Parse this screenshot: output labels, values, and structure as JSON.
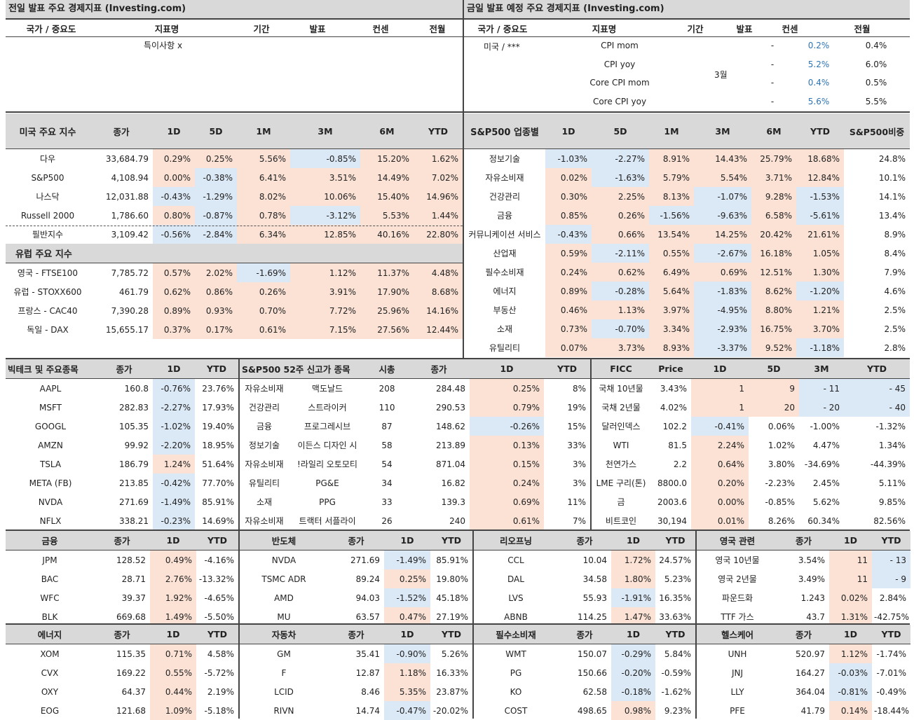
{
  "header_left": "전일 발표 주요 경제지표 (Investing.com)",
  "header_right": "금일 발표 예정 주요 경제지표 (Investing.com)",
  "econ_cols": [
    "국가 / 중요도",
    "지표명",
    "기간",
    "발표",
    "컨센",
    "전월"
  ],
  "econ_left_note": "특이사항 x",
  "econ_right": {
    "country": "미국 / ***",
    "period": "3월",
    "rows": [
      {
        "name": "CPI mom",
        "actual": "-",
        "cons": "0.2%",
        "prev": "0.4%"
      },
      {
        "name": "CPI yoy",
        "actual": "-",
        "cons": "5.2%",
        "prev": "6.0%"
      },
      {
        "name": "Core CPI mom",
        "actual": "-",
        "cons": "0.4%",
        "prev": "0.5%"
      },
      {
        "name": "Core CPI yoy",
        "actual": "-",
        "cons": "5.6%",
        "prev": "5.5%"
      }
    ]
  },
  "us_index": {
    "title": "미국 주요 지수",
    "cols": [
      "종가",
      "1D",
      "5D",
      "1M",
      "3M",
      "6M",
      "YTD"
    ],
    "rows": [
      [
        "다우",
        "33,684.79",
        "0.29%",
        "0.25%",
        "5.56%",
        "-0.85%",
        "15.20%",
        "1.62%"
      ],
      [
        "S&P500",
        "4,108.94",
        "0.00%",
        "-0.38%",
        "6.41%",
        "3.51%",
        "14.49%",
        "7.02%"
      ],
      [
        "나스닥",
        "12,031.88",
        "-0.43%",
        "-1.29%",
        "8.02%",
        "10.06%",
        "15.40%",
        "14.96%"
      ],
      [
        "Russell 2000",
        "1,786.60",
        "0.80%",
        "-0.87%",
        "0.78%",
        "-3.12%",
        "5.53%",
        "1.44%"
      ],
      [
        "필반지수",
        "3,109.42",
        "-0.56%",
        "-2.84%",
        "6.34%",
        "12.85%",
        "40.16%",
        "22.80%"
      ]
    ]
  },
  "eu_index": {
    "title": "유럽 주요 지수",
    "rows": [
      [
        "영국 - FTSE100",
        "7,785.72",
        "0.57%",
        "2.02%",
        "-1.69%",
        "1.12%",
        "11.37%",
        "4.48%"
      ],
      [
        "유럽 - STOXX600",
        "461.79",
        "0.62%",
        "0.86%",
        "0.26%",
        "3.91%",
        "17.90%",
        "8.68%"
      ],
      [
        "프랑스 - CAC40",
        "7,390.28",
        "0.89%",
        "0.93%",
        "0.70%",
        "7.72%",
        "25.96%",
        "14.16%"
      ],
      [
        "독일 - DAX",
        "15,655.17",
        "0.37%",
        "0.17%",
        "0.61%",
        "7.15%",
        "27.56%",
        "12.44%"
      ]
    ]
  },
  "sectors": {
    "title": "S&P500 업종별",
    "cols": [
      "1D",
      "5D",
      "1M",
      "3M",
      "6M",
      "YTD",
      "S&P500비중"
    ],
    "rows": [
      [
        "정보기술",
        "-1.03%",
        "-2.27%",
        "8.91%",
        "14.43%",
        "25.79%",
        "18.68%",
        "24.8%"
      ],
      [
        "자유소비재",
        "0.02%",
        "-1.63%",
        "5.79%",
        "5.54%",
        "3.71%",
        "12.84%",
        "10.1%"
      ],
      [
        "건강관리",
        "0.30%",
        "2.25%",
        "8.13%",
        "-1.07%",
        "9.28%",
        "-1.53%",
        "14.1%"
      ],
      [
        "금융",
        "0.85%",
        "0.26%",
        "-1.56%",
        "-9.63%",
        "6.58%",
        "-5.61%",
        "13.4%"
      ],
      [
        "커뮤니케이션 서비스",
        "-0.43%",
        "0.66%",
        "13.54%",
        "14.25%",
        "20.42%",
        "21.61%",
        "8.9%"
      ],
      [
        "산업재",
        "0.59%",
        "-2.11%",
        "0.55%",
        "-2.67%",
        "16.18%",
        "1.05%",
        "8.4%"
      ],
      [
        "필수소비재",
        "0.24%",
        "0.62%",
        "6.49%",
        "0.69%",
        "12.51%",
        "1.30%",
        "7.9%"
      ],
      [
        "에너지",
        "0.89%",
        "-0.28%",
        "5.64%",
        "-1.83%",
        "8.62%",
        "-1.20%",
        "4.6%"
      ],
      [
        "부동산",
        "0.46%",
        "1.13%",
        "3.97%",
        "-4.95%",
        "8.80%",
        "1.21%",
        "2.5%"
      ],
      [
        "소재",
        "0.73%",
        "-0.70%",
        "3.34%",
        "-2.93%",
        "16.75%",
        "3.70%",
        "2.5%"
      ],
      [
        "유틸리티",
        "0.07%",
        "3.73%",
        "8.93%",
        "-3.37%",
        "9.52%",
        "-1.18%",
        "2.8%"
      ]
    ]
  },
  "bigtech": {
    "title": "빅테크 및 주요종목",
    "cols": [
      "종가",
      "1D",
      "YTD"
    ],
    "rows": [
      [
        "AAPL",
        "160.8",
        "-0.76%",
        "23.76%"
      ],
      [
        "MSFT",
        "282.83",
        "-2.27%",
        "17.93%"
      ],
      [
        "GOOGL",
        "105.35",
        "-1.02%",
        "19.40%"
      ],
      [
        "AMZN",
        "99.92",
        "-2.20%",
        "18.95%"
      ],
      [
        "TSLA",
        "186.79",
        "1.24%",
        "51.64%"
      ],
      [
        "META (FB)",
        "213.85",
        "-0.42%",
        "77.70%"
      ],
      [
        "NVDA",
        "271.69",
        "-1.49%",
        "85.91%"
      ],
      [
        "NFLX",
        "338.21",
        "-0.23%",
        "14.69%"
      ]
    ]
  },
  "highs": {
    "title": "S&P500 52주 신고가 종목",
    "cols": [
      "시총",
      "종가",
      "1D",
      "YTD"
    ],
    "rows": [
      [
        "자유소비재",
        "맥도날드",
        "208",
        "284.48",
        "0.25%",
        "8%"
      ],
      [
        "건강관리",
        "스트라이커",
        "110",
        "290.53",
        "0.79%",
        "19%"
      ],
      [
        "금융",
        "프로그레시브",
        "87",
        "148.62",
        "-0.26%",
        "15%"
      ],
      [
        "정보기술",
        "이든스 디자인 시",
        "58",
        "213.89",
        "0.13%",
        "33%"
      ],
      [
        "자유소비재",
        "!라일리 오토모티",
        "54",
        "871.04",
        "0.15%",
        "3%"
      ],
      [
        "유틸리티",
        "PG&E",
        "34",
        "16.82",
        "0.24%",
        "3%"
      ],
      [
        "소재",
        "PPG",
        "33",
        "139.3",
        "0.69%",
        "11%"
      ],
      [
        "자유소비재",
        "트랙터 서플라이",
        "26",
        "240",
        "0.61%",
        "7%"
      ]
    ]
  },
  "ficc": {
    "title": "FICC",
    "cols": [
      "Price",
      "1D",
      "5D",
      "3M",
      "YTD"
    ],
    "rows": [
      [
        "국채 10년물",
        "3.43%",
        "1",
        "9",
        "- 11",
        "- 45"
      ],
      [
        "국채 2년물",
        "4.02%",
        "1",
        "20",
        "- 20",
        "- 40"
      ],
      [
        "달러인덱스",
        "102.2",
        "-0.41%",
        "0.06%",
        "-1.00%",
        "-1.32%"
      ],
      [
        "WTI",
        "81.5",
        "2.24%",
        "1.02%",
        "4.47%",
        "1.34%"
      ],
      [
        "천연가스",
        "2.2",
        "0.64%",
        "3.80%",
        "-34.69%",
        "-44.39%"
      ],
      [
        "LME 구리(톤)",
        "8800.0",
        "0.20%",
        "-2.23%",
        "2.45%",
        "5.11%"
      ],
      [
        "금",
        "2003.6",
        "0.00%",
        "-0.85%",
        "5.62%",
        "9.85%"
      ],
      [
        "비트코인",
        "30,194",
        "0.01%",
        "8.26%",
        "60.34%",
        "82.56%"
      ]
    ]
  },
  "groups": [
    {
      "title": "금융",
      "rows": [
        [
          "JPM",
          "128.52",
          "0.49%",
          "-4.16%"
        ],
        [
          "BAC",
          "28.71",
          "2.76%",
          "-13.32%"
        ],
        [
          "WFC",
          "39.37",
          "1.92%",
          "-4.65%"
        ],
        [
          "BLK",
          "669.68",
          "1.49%",
          "-5.50%"
        ]
      ]
    },
    {
      "title": "반도체",
      "rows": [
        [
          "NVDA",
          "271.69",
          "-1.49%",
          "85.91%"
        ],
        [
          "TSMC ADR",
          "89.24",
          "0.25%",
          "19.80%"
        ],
        [
          "AMD",
          "94.03",
          "-1.52%",
          "45.18%"
        ],
        [
          "MU",
          "63.57",
          "0.47%",
          "27.19%"
        ]
      ]
    },
    {
      "title": "리오프닝",
      "rows": [
        [
          "CCL",
          "10.04",
          "1.72%",
          "24.57%"
        ],
        [
          "DAL",
          "34.58",
          "1.80%",
          "5.23%"
        ],
        [
          "LVS",
          "55.93",
          "-1.91%",
          "16.35%"
        ],
        [
          "ABNB",
          "114.25",
          "1.47%",
          "33.63%"
        ]
      ]
    },
    {
      "title": "영국 관련",
      "rows": [
        [
          "영국 10년물",
          "3.54%",
          "11",
          "- 13"
        ],
        [
          "영국 2년물",
          "3.49%",
          "11",
          "- 9"
        ],
        [
          "파운드화",
          "1.243",
          "0.02%",
          "2.84%"
        ],
        [
          "TTF 가스",
          "43.7",
          "1.31%",
          "-42.75%"
        ]
      ]
    },
    {
      "title": "에너지",
      "rows": [
        [
          "XOM",
          "115.35",
          "0.71%",
          "4.58%"
        ],
        [
          "CVX",
          "169.22",
          "0.55%",
          "-5.72%"
        ],
        [
          "OXY",
          "64.37",
          "0.44%",
          "2.19%"
        ],
        [
          "EOG",
          "121.68",
          "1.09%",
          "-5.18%"
        ]
      ]
    },
    {
      "title": "자동차",
      "rows": [
        [
          "GM",
          "35.41",
          "-0.90%",
          "5.26%"
        ],
        [
          "F",
          "12.87",
          "1.18%",
          "16.33%"
        ],
        [
          "LCID",
          "8.46",
          "5.35%",
          "23.87%"
        ],
        [
          "RIVN",
          "14.74",
          "-0.47%",
          "-20.02%"
        ]
      ]
    },
    {
      "title": "필수소비재",
      "rows": [
        [
          "WMT",
          "150.07",
          "-0.29%",
          "5.84%"
        ],
        [
          "PG",
          "150.66",
          "-0.20%",
          "-0.59%"
        ],
        [
          "KO",
          "62.58",
          "-0.18%",
          "-1.62%"
        ],
        [
          "COST",
          "498.65",
          "0.98%",
          "9.23%"
        ]
      ]
    },
    {
      "title": "헬스케어",
      "rows": [
        [
          "UNH",
          "520.97",
          "1.12%",
          "-1.74%"
        ],
        [
          "JNJ",
          "164.27",
          "-0.03%",
          "-7.01%"
        ],
        [
          "LLY",
          "364.04",
          "-0.81%",
          "-0.49%"
        ],
        [
          "PFE",
          "41.79",
          "0.14%",
          "-18.44%"
        ]
      ]
    }
  ],
  "group_cols": [
    "종가",
    "1D",
    "YTD"
  ],
  "colors": {
    "positive_fill": "#fbe2d5",
    "negative_fill": "#dbe8f5",
    "header_fill": "#d9d9d9",
    "consensus_text": "#2e75b6"
  }
}
